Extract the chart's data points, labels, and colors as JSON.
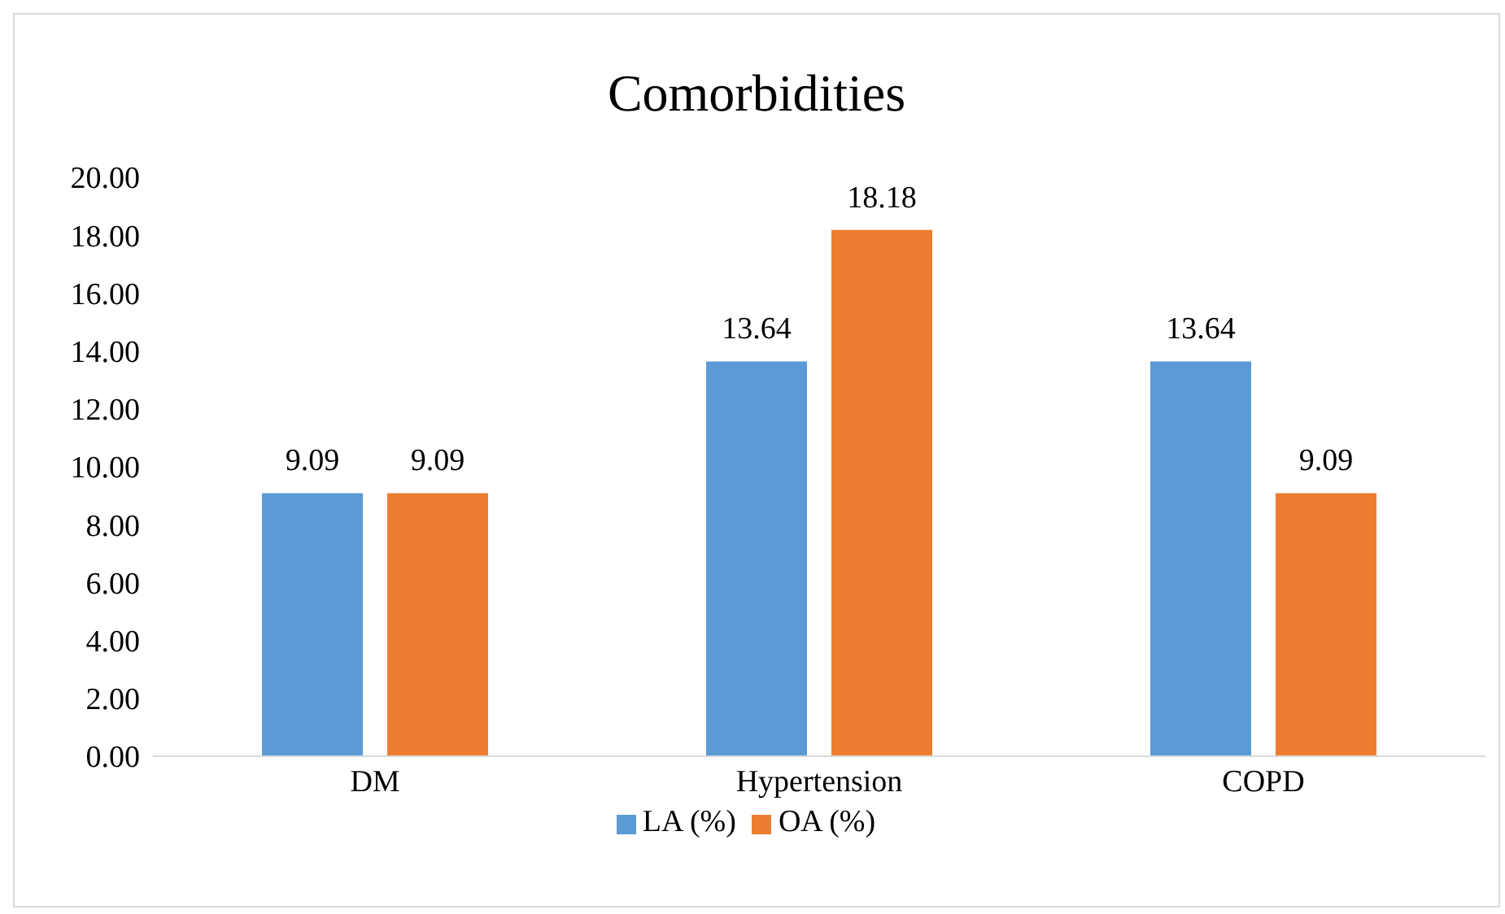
{
  "chart_data": {
    "type": "bar",
    "title": "Comorbidities",
    "categories": [
      "DM",
      "Hypertension",
      "COPD"
    ],
    "series": [
      {
        "name": "LA (%)",
        "color": "#5b9bd5",
        "values": [
          9.09,
          13.64,
          13.64
        ]
      },
      {
        "name": "OA (%)",
        "color": "#ed7d31",
        "values": [
          9.09,
          18.18,
          9.09
        ]
      }
    ],
    "ylim": [
      0,
      20
    ],
    "yticks": [
      {
        "value": 0,
        "label": "0.00"
      },
      {
        "value": 2,
        "label": "2.00"
      },
      {
        "value": 4,
        "label": "4.00"
      },
      {
        "value": 6,
        "label": "6.00"
      },
      {
        "value": 8,
        "label": "8.00"
      },
      {
        "value": 10,
        "label": "10.00"
      },
      {
        "value": 12,
        "label": "12.00"
      },
      {
        "value": 14,
        "label": "14.00"
      },
      {
        "value": 16,
        "label": "16.00"
      },
      {
        "value": 18,
        "label": "18.00"
      },
      {
        "value": 20,
        "label": "20.00"
      }
    ],
    "data_labels": true,
    "legend": "bottom"
  }
}
